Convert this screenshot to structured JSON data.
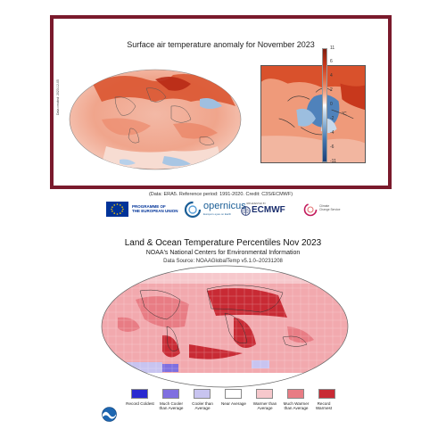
{
  "copernicus_panel": {
    "title": "Surface air temperature anomaly for November 2023",
    "footer": "(Data: ERA5. Reference period: 1991-2020. Credit: C3S/ECMWF)",
    "side_note": "Data created: 2023-12-05",
    "colorbar": {
      "ticks": [
        "11",
        "6",
        "4",
        "2",
        "0",
        "-2",
        "-4",
        "-6",
        "-11"
      ],
      "unit": "°C",
      "warm_color": "#c8381c",
      "cool_color": "#4577b1"
    }
  },
  "logos": {
    "eu_line1": "PROGRAMME OF",
    "eu_line2": "THE EUROPEAN UNION",
    "copernicus": "opernicus",
    "copernicus_sub": "Europe's eyes on Earth",
    "ecmwf_small": "IMPLEMENTED BY",
    "ecmwf": "ECMWF",
    "c3s_line1": "Climate",
    "c3s_line2": "Change Service"
  },
  "noaa_panel": {
    "title": "Land & Ocean Temperature Percentiles Nov 2023",
    "subtitle": "NOAA's National Centers for Environmental Information",
    "source": "Data Source: NOAAGlobalTemp v5.1.0–20231208",
    "legend": [
      {
        "label": "Record Coldest",
        "color": "#2a2ad0"
      },
      {
        "label": "Much Cooler than Average",
        "color": "#7f6fe0"
      },
      {
        "label": "Cooler than Average",
        "color": "#c8c4f0"
      },
      {
        "label": "Near Average",
        "color": "#ffffff"
      },
      {
        "label": "Warmer than Average",
        "color": "#f6c8cc"
      },
      {
        "label": "Much Warmer than Average",
        "color": "#e87c84"
      },
      {
        "label": "Record Warmest",
        "color": "#c82a34"
      }
    ]
  }
}
